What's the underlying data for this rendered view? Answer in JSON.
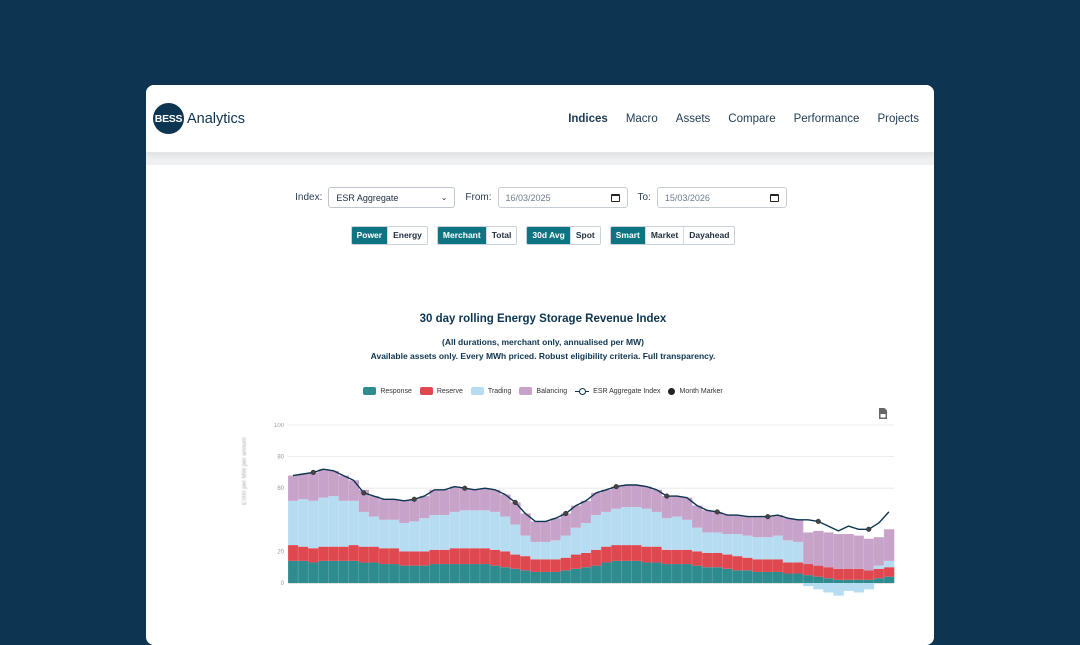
{
  "brand": {
    "logo_text": "BESS",
    "name": "Analytics"
  },
  "nav": {
    "items": [
      "Indices",
      "Macro",
      "Assets",
      "Compare",
      "Performance",
      "Projects"
    ],
    "active": "Indices"
  },
  "filters": {
    "index_label": "Index:",
    "index_value": "ESR Aggregate",
    "from_label": "From:",
    "from_value": "16/03/2025",
    "to_label": "To:",
    "to_value": "15/03/2026"
  },
  "toggles": [
    {
      "options": [
        "Power",
        "Energy"
      ],
      "selected": "Power"
    },
    {
      "options": [
        "Merchant",
        "Total"
      ],
      "selected": "Merchant"
    },
    {
      "options": [
        "30d Avg",
        "Spot"
      ],
      "selected": "30d Avg"
    },
    {
      "options": [
        "Smart",
        "Market",
        "Dayahead"
      ],
      "selected": "Smart"
    }
  ],
  "chart_title": "30 day rolling Energy Storage Revenue Index",
  "chart_subtitle_1": "(All durations, merchant only, annualised per MW)",
  "chart_subtitle_2": "Available assets only. Every MWh priced. Robust eligibility criteria. Full transparency.",
  "legend": {
    "response": "Response",
    "reserve": "Reserve",
    "trading": "Trading",
    "balancing": "Balancing",
    "index": "ESR Aggregate Index",
    "marker": "Month Marker"
  },
  "colors": {
    "response": "#2e8c8f",
    "reserve": "#e04850",
    "trading": "#b6dcf2",
    "balancing": "#c7a2c9",
    "index": "#0d3551",
    "accent": "#0f7482",
    "background": "#0d3551"
  },
  "icons": {
    "download": "download-icon",
    "calendar": "calendar-icon",
    "chevron": "chevron-down-icon"
  },
  "chart_data": {
    "type": "area",
    "ylabel": "£'000 per MW per annum",
    "y_ticks": [
      0,
      20,
      60,
      80,
      100
    ],
    "ylim": [
      -15,
      100
    ],
    "x_points": 60,
    "series": [
      {
        "name": "Response",
        "values": [
          14,
          14,
          13,
          14,
          14,
          14,
          14,
          13,
          13,
          12,
          12,
          11,
          11,
          11,
          12,
          12,
          12,
          12,
          12,
          12,
          11,
          10,
          9,
          8,
          7,
          7,
          7,
          8,
          9,
          10,
          11,
          13,
          14,
          14,
          14,
          13,
          13,
          12,
          12,
          12,
          11,
          10,
          10,
          9,
          8,
          8,
          7,
          7,
          7,
          6,
          6,
          5,
          4,
          3,
          2,
          2,
          2,
          2,
          3,
          4
        ]
      },
      {
        "name": "Reserve",
        "values": [
          10,
          9,
          9,
          9,
          9,
          9,
          10,
          10,
          10,
          10,
          10,
          9,
          9,
          9,
          9,
          9,
          10,
          10,
          10,
          10,
          10,
          10,
          9,
          9,
          8,
          8,
          8,
          8,
          9,
          9,
          10,
          10,
          10,
          10,
          10,
          10,
          10,
          9,
          9,
          9,
          9,
          9,
          9,
          9,
          9,
          8,
          8,
          8,
          8,
          7,
          7,
          7,
          7,
          7,
          7,
          7,
          7,
          6,
          6,
          6
        ]
      },
      {
        "name": "Trading",
        "values": [
          28,
          30,
          30,
          31,
          32,
          29,
          28,
          22,
          19,
          18,
          18,
          18,
          19,
          21,
          22,
          22,
          23,
          24,
          24,
          24,
          24,
          22,
          19,
          13,
          11,
          11,
          12,
          14,
          17,
          19,
          22,
          22,
          23,
          24,
          24,
          24,
          22,
          20,
          21,
          19,
          15,
          13,
          13,
          13,
          14,
          14,
          14,
          14,
          15,
          14,
          13,
          -2,
          -4,
          -6,
          -8,
          -5,
          -6,
          -4,
          2,
          4
        ]
      },
      {
        "name": "Balancing",
        "values": [
          16,
          16,
          18,
          18,
          16,
          16,
          13,
          14,
          13,
          13,
          13,
          14,
          14,
          14,
          16,
          16,
          16,
          14,
          13,
          14,
          14,
          14,
          14,
          14,
          13,
          13,
          14,
          14,
          14,
          14,
          14,
          14,
          14,
          14,
          14,
          14,
          14,
          14,
          13,
          14,
          14,
          14,
          13,
          12,
          12,
          12,
          13,
          13,
          13,
          14,
          14,
          20,
          22,
          22,
          22,
          22,
          21,
          20,
          18,
          20
        ]
      }
    ],
    "index_line": [
      68,
      69,
      70,
      72,
      71,
      68,
      65,
      57,
      55,
      53,
      53,
      52,
      53,
      55,
      59,
      59,
      61,
      60,
      59,
      60,
      59,
      56,
      51,
      44,
      39,
      39,
      41,
      44,
      49,
      52,
      57,
      59,
      61,
      62,
      62,
      61,
      59,
      55,
      55,
      54,
      49,
      46,
      45,
      43,
      43,
      42,
      42,
      42,
      43,
      41,
      40,
      40,
      39,
      36,
      33,
      36,
      34,
      34,
      38,
      45
    ]
  }
}
